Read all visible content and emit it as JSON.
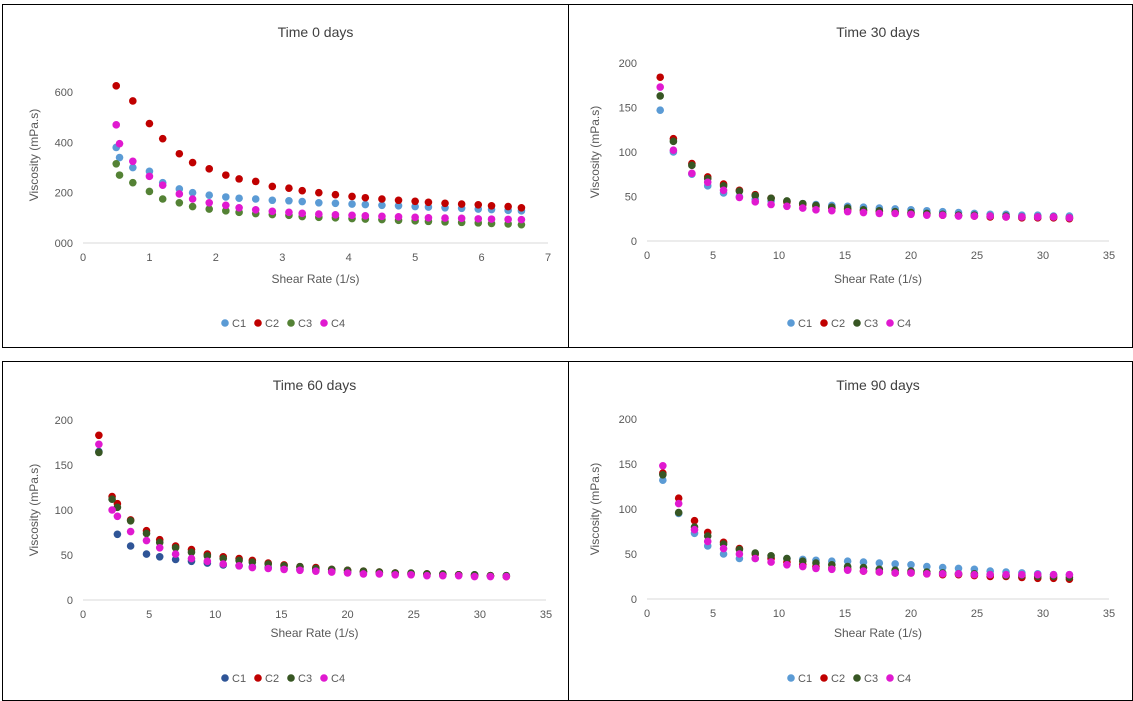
{
  "chart_data": [
    {
      "type": "scatter",
      "title": "Time 0 days",
      "xlabel": "Shear Rate (1/s)",
      "ylabel": "Viscosity (mPa.s)",
      "xlim": [
        0,
        7
      ],
      "ylim": [
        0,
        700
      ],
      "xticks": [
        "0",
        "1",
        "2",
        "3",
        "4",
        "5",
        "6",
        "7"
      ],
      "yticks": [
        "000",
        "200",
        "400",
        "600"
      ],
      "ytick_values": [
        0,
        200,
        400,
        600
      ],
      "legend": "bottom",
      "series": [
        {
          "name": "C1",
          "color": "#5B9BD5",
          "x": [
            0.5,
            0.55,
            0.75,
            1.0,
            1.2,
            1.45,
            1.65,
            1.9,
            2.15,
            2.35,
            2.6,
            2.85,
            3.1,
            3.3,
            3.55,
            3.8,
            4.05,
            4.25,
            4.5,
            4.75,
            5.0,
            5.2,
            5.45,
            5.7,
            5.95,
            6.15,
            6.4,
            6.6
          ],
          "y": [
            380,
            340,
            300,
            285,
            240,
            215,
            200,
            190,
            183,
            178,
            175,
            170,
            168,
            165,
            160,
            158,
            155,
            153,
            150,
            148,
            145,
            143,
            140,
            138,
            135,
            133,
            130,
            128
          ]
        },
        {
          "name": "C2",
          "color": "#C00000",
          "x": [
            0.5,
            0.75,
            1.0,
            1.2,
            1.45,
            1.65,
            1.9,
            2.15,
            2.35,
            2.6,
            2.85,
            3.1,
            3.3,
            3.55,
            3.8,
            4.05,
            4.25,
            4.5,
            4.75,
            5.0,
            5.2,
            5.45,
            5.7,
            5.95,
            6.15,
            6.4,
            6.6
          ],
          "y": [
            625,
            565,
            475,
            415,
            355,
            320,
            295,
            270,
            255,
            245,
            225,
            218,
            208,
            200,
            192,
            185,
            180,
            175,
            170,
            166,
            162,
            158,
            155,
            152,
            148,
            145,
            140
          ]
        },
        {
          "name": "C3",
          "color": "#548235",
          "x": [
            0.5,
            0.55,
            0.75,
            1.0,
            1.2,
            1.45,
            1.65,
            1.9,
            2.15,
            2.35,
            2.6,
            2.85,
            3.1,
            3.3,
            3.55,
            3.8,
            4.05,
            4.25,
            4.5,
            4.75,
            5.0,
            5.2,
            5.45,
            5.7,
            5.95,
            6.15,
            6.4,
            6.6
          ],
          "y": [
            315,
            270,
            240,
            205,
            175,
            160,
            145,
            135,
            128,
            122,
            117,
            113,
            110,
            105,
            102,
            100,
            97,
            95,
            93,
            90,
            88,
            86,
            84,
            82,
            80,
            78,
            76,
            73
          ]
        },
        {
          "name": "C4",
          "color": "#E019D0",
          "x": [
            0.5,
            0.55,
            0.75,
            1.0,
            1.2,
            1.45,
            1.65,
            1.9,
            2.15,
            2.35,
            2.6,
            2.85,
            3.1,
            3.3,
            3.55,
            3.8,
            4.05,
            4.25,
            4.5,
            4.75,
            5.0,
            5.2,
            5.45,
            5.7,
            5.95,
            6.15,
            6.4,
            6.6
          ],
          "y": [
            470,
            395,
            325,
            265,
            230,
            195,
            175,
            160,
            150,
            140,
            132,
            126,
            122,
            118,
            115,
            112,
            110,
            108,
            106,
            104,
            102,
            100,
            99,
            98,
            96,
            95,
            94,
            93
          ]
        }
      ]
    },
    {
      "type": "scatter",
      "title": "Time 30 days",
      "xlabel": "Shear Rate (1/s)",
      "ylabel": "Viscosity (mPa.s)",
      "xlim": [
        0,
        35
      ],
      "ylim": [
        0,
        200
      ],
      "xticks": [
        "0",
        "5",
        "10",
        "15",
        "20",
        "25",
        "30",
        "35"
      ],
      "yticks": [
        "0",
        "50",
        "100",
        "150",
        "200"
      ],
      "ytick_values": [
        0,
        50,
        100,
        150,
        200
      ],
      "legend": "bottom",
      "series": [
        {
          "name": "C1",
          "color": "#5B9BD5",
          "x": [
            1.0,
            2.0,
            3.4,
            4.6,
            5.8,
            7.0,
            8.2,
            9.4,
            10.6,
            11.8,
            12.8,
            14.0,
            15.2,
            16.4,
            17.6,
            18.8,
            20.0,
            21.2,
            22.4,
            23.6,
            24.8,
            26.0,
            27.2,
            28.4,
            29.6,
            30.8,
            32.0
          ],
          "y": [
            147,
            100,
            75,
            62,
            54,
            50,
            47,
            45,
            44,
            42,
            41,
            40,
            39,
            38,
            37,
            36,
            35,
            34,
            33,
            32,
            31,
            30,
            30,
            29,
            29,
            28,
            28
          ]
        },
        {
          "name": "C2",
          "color": "#C00000",
          "x": [
            1.0,
            2.0,
            3.4,
            4.6,
            5.8,
            7.0,
            8.2,
            9.4,
            10.6,
            11.8,
            12.8,
            14.0,
            15.2,
            16.4,
            17.6,
            18.8,
            20.0,
            21.2,
            22.4,
            23.6,
            24.8,
            26.0,
            27.2,
            28.4,
            29.6,
            30.8,
            32.0
          ],
          "y": [
            184,
            115,
            87,
            72,
            64,
            57,
            52,
            48,
            44,
            41,
            39,
            37,
            35,
            34,
            33,
            32,
            31,
            30,
            29,
            29,
            28,
            27,
            27,
            26,
            26,
            26,
            25
          ]
        },
        {
          "name": "C3",
          "color": "#375623",
          "x": [
            1.0,
            2.0,
            3.4,
            4.6,
            5.8,
            7.0,
            8.2,
            9.4,
            10.6,
            11.8,
            12.8,
            14.0,
            15.2,
            16.4,
            17.6,
            18.8,
            20.0,
            21.2,
            22.4,
            23.6,
            24.8,
            26.0,
            27.2,
            28.4,
            29.6,
            30.8,
            32.0
          ],
          "y": [
            163,
            112,
            85,
            70,
            62,
            56,
            51,
            48,
            45,
            42,
            40,
            38,
            37,
            35,
            34,
            33,
            32,
            31,
            30,
            29,
            29,
            28,
            28,
            27,
            27,
            27,
            26
          ]
        },
        {
          "name": "C4",
          "color": "#E019D0",
          "x": [
            1.0,
            2.0,
            3.4,
            4.6,
            5.8,
            7.0,
            8.2,
            9.4,
            10.6,
            11.8,
            12.8,
            14.0,
            15.2,
            16.4,
            17.6,
            18.8,
            20.0,
            21.2,
            22.4,
            23.6,
            24.8,
            26.0,
            27.2,
            28.4,
            29.6,
            30.8,
            32.0
          ],
          "y": [
            173,
            102,
            76,
            66,
            57,
            49,
            44,
            41,
            39,
            37,
            35,
            34,
            33,
            32,
            31,
            31,
            30,
            29,
            29,
            28,
            28,
            28,
            27,
            27,
            27,
            27,
            26
          ]
        }
      ]
    },
    {
      "type": "scatter",
      "title": "Time 60 days",
      "xlabel": "Shear Rate (1/s)",
      "ylabel": "Viscosity (mPa.s)",
      "xlim": [
        0,
        35
      ],
      "ylim": [
        0,
        200
      ],
      "xticks": [
        "0",
        "5",
        "10",
        "15",
        "20",
        "25",
        "30",
        "35"
      ],
      "yticks": [
        "0",
        "50",
        "100",
        "150",
        "200"
      ],
      "ytick_values": [
        0,
        50,
        100,
        150,
        200
      ],
      "legend": "bottom",
      "series": [
        {
          "name": "C1",
          "color": "#2F5597",
          "x": [
            1.2,
            2.6,
            3.6,
            4.8,
            5.8,
            7.0,
            8.2,
            9.4,
            10.6,
            11.8,
            12.8,
            14.0,
            15.2,
            16.4,
            17.6,
            18.8,
            20.0,
            21.2,
            22.4,
            23.6,
            24.8,
            26.0,
            27.2,
            28.4,
            29.6,
            30.8,
            32.0
          ],
          "y": [
            165,
            73,
            60,
            51,
            48,
            45,
            43,
            41,
            39,
            38,
            37,
            36,
            35,
            34,
            33,
            32,
            31,
            31,
            30,
            30,
            29,
            29,
            28,
            28,
            28,
            27,
            27
          ]
        },
        {
          "name": "C2",
          "color": "#C00000",
          "x": [
            1.2,
            2.2,
            2.6,
            3.6,
            4.8,
            5.8,
            7.0,
            8.2,
            9.4,
            10.6,
            11.8,
            12.8,
            14.0,
            15.2,
            16.4,
            17.6,
            18.8,
            20.0,
            21.2,
            22.4,
            23.6,
            24.8,
            26.0,
            27.2,
            28.4,
            29.6,
            30.8,
            32.0
          ],
          "y": [
            183,
            115,
            107,
            89,
            77,
            67,
            60,
            56,
            51,
            48,
            46,
            44,
            41,
            39,
            37,
            36,
            34,
            33,
            32,
            31,
            30,
            29,
            29,
            28,
            28,
            27,
            27,
            26
          ]
        },
        {
          "name": "C3",
          "color": "#375623",
          "x": [
            1.2,
            2.2,
            2.6,
            3.6,
            4.8,
            5.8,
            7.0,
            8.2,
            9.4,
            10.6,
            11.8,
            12.8,
            14.0,
            15.2,
            16.4,
            17.6,
            18.8,
            20.0,
            21.2,
            22.4,
            23.6,
            24.8,
            26.0,
            27.2,
            28.4,
            29.6,
            30.8,
            32.0
          ],
          "y": [
            164,
            112,
            103,
            88,
            74,
            64,
            58,
            53,
            49,
            46,
            44,
            42,
            40,
            38,
            37,
            35,
            34,
            33,
            32,
            31,
            30,
            30,
            29,
            29,
            28,
            28,
            27,
            27
          ]
        },
        {
          "name": "C4",
          "color": "#E019D0",
          "x": [
            1.2,
            2.2,
            2.6,
            3.6,
            4.8,
            5.8,
            7.0,
            8.2,
            9.4,
            10.6,
            11.8,
            12.8,
            14.0,
            15.2,
            16.4,
            17.6,
            18.8,
            20.0,
            21.2,
            22.4,
            23.6,
            24.8,
            26.0,
            27.2,
            28.4,
            29.6,
            30.8,
            32.0
          ],
          "y": [
            173,
            100,
            93,
            76,
            66,
            58,
            51,
            46,
            43,
            40,
            38,
            36,
            35,
            34,
            33,
            32,
            31,
            30,
            29,
            29,
            28,
            28,
            27,
            27,
            27,
            26,
            26,
            26
          ]
        }
      ]
    },
    {
      "type": "scatter",
      "title": "Time 90 days",
      "xlabel": "Shear Rate (1/s)",
      "ylabel": "Viscosity (mPa.s)",
      "xlim": [
        0,
        35
      ],
      "ylim": [
        0,
        200
      ],
      "xticks": [
        "0",
        "5",
        "10",
        "15",
        "20",
        "25",
        "30",
        "35"
      ],
      "yticks": [
        "0",
        "50",
        "100",
        "150",
        "200"
      ],
      "ytick_values": [
        0,
        50,
        100,
        150,
        200
      ],
      "legend": "bottom",
      "series": [
        {
          "name": "C1",
          "color": "#5B9BD5",
          "x": [
            1.2,
            2.4,
            3.6,
            4.6,
            5.8,
            7.0,
            8.2,
            9.4,
            10.6,
            11.8,
            12.8,
            14.0,
            15.2,
            16.4,
            17.6,
            18.8,
            20.0,
            21.2,
            22.4,
            23.6,
            24.8,
            26.0,
            27.2,
            28.4,
            29.6,
            30.8,
            32.0
          ],
          "y": [
            132,
            95,
            73,
            59,
            50,
            45,
            45,
            46,
            45,
            44,
            43,
            42,
            42,
            41,
            40,
            39,
            38,
            36,
            35,
            34,
            33,
            31,
            30,
            29,
            28,
            27,
            27
          ]
        },
        {
          "name": "C2",
          "color": "#C00000",
          "x": [
            1.2,
            2.4,
            3.6,
            4.6,
            5.8,
            7.0,
            8.2,
            9.4,
            10.6,
            11.8,
            12.8,
            14.0,
            15.2,
            16.4,
            17.6,
            18.8,
            20.0,
            21.2,
            22.4,
            23.6,
            24.8,
            26.0,
            27.2,
            28.4,
            29.6,
            30.8,
            32.0
          ],
          "y": [
            140,
            112,
            87,
            74,
            63,
            56,
            50,
            45,
            41,
            38,
            36,
            34,
            33,
            31,
            30,
            29,
            29,
            28,
            27,
            27,
            26,
            25,
            25,
            24,
            23,
            23,
            22
          ]
        },
        {
          "name": "C3",
          "color": "#375623",
          "x": [
            1.2,
            2.4,
            3.6,
            4.6,
            5.8,
            7.0,
            8.2,
            9.4,
            10.6,
            11.8,
            12.8,
            14.0,
            15.2,
            16.4,
            17.6,
            18.8,
            20.0,
            21.2,
            22.4,
            23.6,
            24.8,
            26.0,
            27.2,
            28.4,
            29.6,
            30.8,
            32.0
          ],
          "y": [
            138,
            96,
            80,
            70,
            61,
            55,
            51,
            48,
            45,
            42,
            40,
            38,
            36,
            35,
            33,
            32,
            31,
            30,
            29,
            28,
            28,
            27,
            26,
            26,
            25,
            25,
            24
          ]
        },
        {
          "name": "C4",
          "color": "#E019D0",
          "x": [
            1.2,
            2.4,
            3.6,
            4.6,
            5.8,
            7.0,
            8.2,
            9.4,
            10.6,
            11.8,
            12.8,
            14.0,
            15.2,
            16.4,
            17.6,
            18.8,
            20.0,
            21.2,
            22.4,
            23.6,
            24.8,
            26.0,
            27.2,
            28.4,
            29.6,
            30.8,
            32.0
          ],
          "y": [
            148,
            106,
            77,
            64,
            56,
            50,
            45,
            41,
            38,
            36,
            34,
            33,
            32,
            31,
            30,
            29,
            29,
            28,
            28,
            28,
            27,
            27,
            27,
            27,
            27,
            27,
            27
          ]
        }
      ]
    }
  ]
}
